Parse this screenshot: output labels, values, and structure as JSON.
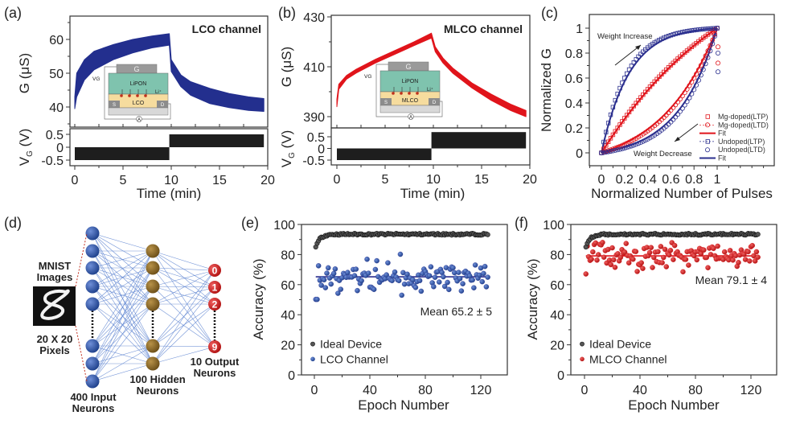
{
  "figure": {
    "panels": {
      "a": {
        "label": "(a)"
      },
      "b": {
        "label": "(b)"
      },
      "c": {
        "label": "(c)"
      },
      "d": {
        "label": "(d)"
      },
      "e": {
        "label": "(e)"
      },
      "f": {
        "label": "(f)"
      }
    },
    "inset": {
      "gate": "G",
      "electrolyte": "LiPON",
      "ion": "Li⁺",
      "source": "S",
      "drain": "D",
      "vg": "V",
      "vg_sub": "G",
      "ammeter": "A",
      "channel_a": "LCO",
      "channel_b": "MLCO"
    },
    "network": {
      "mnist_title": [
        "MNIST",
        "Images"
      ],
      "pixels_label": [
        "20 X 20",
        "Pixels"
      ],
      "input_label": [
        "400 Input",
        "Neurons"
      ],
      "hidden_label": [
        "100 Hidden",
        "Neurons"
      ],
      "output_label": [
        "10 Output",
        "Neurons"
      ],
      "output_digits": [
        "0",
        "1",
        "2",
        "9"
      ],
      "colors": {
        "input": "#1f4a93",
        "hidden": "#7a5a1e",
        "output": "#c0161c",
        "edge": "#5b82d0"
      }
    }
  },
  "chart_data": [
    {
      "id": "a",
      "type": "area",
      "title": "LCO channel",
      "xlabel": "Time (min)",
      "ylabel": "G (μS)",
      "ylabel2": "V",
      "ylabel2_sub": "G",
      "ylabel2_unit": " (V)",
      "xlim": [
        0,
        20
      ],
      "ylim": [
        35,
        65
      ],
      "xticks": [
        "0",
        "5",
        "10",
        "15",
        "20"
      ],
      "yticks": [
        "40",
        "50",
        "60"
      ],
      "ytick_values": [
        40,
        50,
        60
      ],
      "vg_ylim": [
        -0.6,
        0.7
      ],
      "vg_ticks": [
        "0.5",
        "0",
        "-0.5"
      ],
      "vg_tick_values": [
        0.5,
        0,
        -0.5
      ],
      "color": "#232f8e",
      "potentiation": {
        "t": [
          0,
          0.2,
          1,
          2,
          4,
          6,
          8,
          9.8
        ],
        "upper": [
          43,
          50,
          54,
          56.5,
          58.5,
          60,
          61,
          61.7
        ],
        "lower": [
          39.5,
          43,
          48,
          51,
          54,
          56,
          57.5,
          58.3
        ]
      },
      "depression": {
        "t": [
          9.8,
          10,
          11,
          12,
          14,
          16,
          18,
          19.6
        ],
        "upper": [
          61.7,
          54,
          49.5,
          47.5,
          45.5,
          44,
          43,
          42.5
        ],
        "lower": [
          58.3,
          50.5,
          46,
          43.5,
          41,
          39.8,
          39,
          38.7
        ]
      },
      "vg_pulses": [
        {
          "t0": 0,
          "t1": 9.8,
          "v0": -0.5,
          "v1": 0
        },
        {
          "t0": 9.8,
          "t1": 19.6,
          "v0": 0,
          "v1": 0.5
        }
      ]
    },
    {
      "id": "b",
      "type": "area",
      "title": "MLCO channel",
      "xlabel": "Time (min)",
      "ylabel": "G (μS)",
      "ylabel2": "V",
      "ylabel2_sub": "G",
      "ylabel2_unit": " (V)",
      "xlim": [
        0,
        20
      ],
      "ylim": [
        387,
        430
      ],
      "xticks": [
        "0",
        "5",
        "10",
        "15",
        "20"
      ],
      "yticks": [
        "390",
        "410",
        "430"
      ],
      "ytick_values": [
        390,
        410,
        430
      ],
      "vg_ylim": [
        -0.6,
        0.7
      ],
      "vg_ticks": [
        "0.5",
        "0",
        "-0.5"
      ],
      "vg_tick_values": [
        0.5,
        0,
        -0.5
      ],
      "color": "#e0141b",
      "potentiation": {
        "t": [
          0,
          0.2,
          1,
          2,
          4,
          6,
          8,
          9.8
        ],
        "upper": [
          397,
          403,
          406.5,
          409,
          413,
          416.5,
          420,
          423.5
        ],
        "lower": [
          394,
          401,
          405,
          407.5,
          411.5,
          415,
          418.5,
          421.5
        ]
      },
      "depression": {
        "t": [
          9.8,
          10.2,
          11,
          12,
          14,
          16,
          18,
          19.6
        ],
        "upper": [
          423.5,
          418,
          413.5,
          409.5,
          403.5,
          399,
          395,
          392.5
        ],
        "lower": [
          421.5,
          416,
          411.5,
          407.5,
          401.5,
          396.5,
          392.5,
          390
        ]
      },
      "vg_pulses": [
        {
          "t0": 0,
          "t1": 9.8,
          "v0": -0.5,
          "v1": 0
        },
        {
          "t0": 9.8,
          "t1": 19.6,
          "v0": 0,
          "v1": 0.7
        }
      ]
    },
    {
      "id": "c",
      "type": "scatter",
      "xlabel": "Normalized Number of Pulses",
      "ylabel": "Normalized G",
      "xlim": [
        -0.1,
        1.5
      ],
      "ylim": [
        -0.1,
        1.08
      ],
      "xticks": [
        "0",
        "0.2",
        "0.4",
        "0.6",
        "0.8",
        "1"
      ],
      "xtick_values": [
        0,
        0.2,
        0.4,
        0.6,
        0.8,
        1
      ],
      "yticks": [
        "0",
        "0.2",
        "0.4",
        "0.6",
        "0.8",
        "1"
      ],
      "ytick_values": [
        0,
        0.2,
        0.4,
        0.6,
        0.8,
        1
      ],
      "annotations": [
        "Weight Increase",
        "Weight Decrease"
      ],
      "series": [
        {
          "name": "Mg-doped(LTP)",
          "marker": "square",
          "color": "#e0141b",
          "curve": "ltp",
          "nl": 0.9
        },
        {
          "name": "Mg-doped(LTD)",
          "marker": "circle",
          "color": "#e0141b",
          "curve": "ltd",
          "nl": 2.2
        },
        {
          "name": "Fit",
          "marker": "line",
          "color": "#e0141b"
        },
        {
          "name": "Undoped(LTP)",
          "marker": "square",
          "color": "#2b2f8e",
          "curve": "ltp",
          "nl": 4.5
        },
        {
          "name": "Undoped(LTD)",
          "marker": "circle",
          "color": "#2b2f8e",
          "curve": "ltd",
          "nl": 3.2
        },
        {
          "name": "Fit",
          "marker": "line",
          "color": "#2b2f8e"
        }
      ]
    },
    {
      "id": "e",
      "type": "scatter",
      "xlabel": "Epoch Number",
      "ylabel": "Accuracy (%)",
      "xlim": [
        -8,
        138
      ],
      "ylim": [
        0,
        100
      ],
      "xticks": [
        "0",
        "40",
        "80",
        "120"
      ],
      "xtick_values": [
        0,
        40,
        80,
        120
      ],
      "yticks": [
        "0",
        "20",
        "40",
        "60",
        "80",
        "100"
      ],
      "ytick_values": [
        0,
        20,
        40,
        60,
        80,
        100
      ],
      "annotation": "Mean 65.2 ± 5",
      "mean": 65.2,
      "std": 5,
      "first_value": 50,
      "series": [
        {
          "name": "Ideal Device",
          "color": "#222222",
          "start": 85,
          "plateau": 93.5,
          "epochs": 125
        },
        {
          "name": "LCO Channel",
          "color": "#2b2f8e",
          "epochs": 125
        }
      ]
    },
    {
      "id": "f",
      "type": "scatter",
      "xlabel": "Epoch Number",
      "ylabel": "Accuracy (%)",
      "xlim": [
        -8,
        138
      ],
      "ylim": [
        0,
        100
      ],
      "xticks": [
        "0",
        "40",
        "80",
        "120"
      ],
      "xtick_values": [
        0,
        40,
        80,
        120
      ],
      "yticks": [
        "0",
        "20",
        "40",
        "60",
        "80",
        "100"
      ],
      "ytick_values": [
        0,
        20,
        40,
        60,
        80,
        100
      ],
      "annotation": "Mean 79.1 ± 4",
      "mean": 79.1,
      "std": 4,
      "first_value": 62,
      "series": [
        {
          "name": "Ideal Device",
          "color": "#222222",
          "start": 85,
          "plateau": 93.5,
          "epochs": 125
        },
        {
          "name": "MLCO Channel",
          "color": "#e0141b",
          "epochs": 125
        }
      ]
    }
  ]
}
